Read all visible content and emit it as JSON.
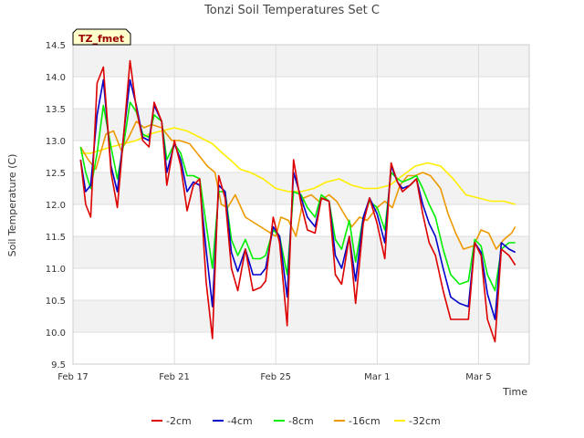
{
  "chart_data": {
    "type": "line",
    "title": "Tonzi Soil Temperatures Set C",
    "station_label": "TZ_fmet",
    "xlabel": "Time",
    "ylabel": "Soil Temperature (C)",
    "xlim": [
      0,
      18
    ],
    "ylim": [
      9.5,
      14.5
    ],
    "x_ticks": [
      {
        "x": 0,
        "label": "Feb 17"
      },
      {
        "x": 4,
        "label": "Feb 21"
      },
      {
        "x": 8,
        "label": "Feb 25"
      },
      {
        "x": 12,
        "label": "Mar 1"
      },
      {
        "x": 16,
        "label": "Mar 5"
      }
    ],
    "y_ticks": [
      "9.5",
      "10.0",
      "10.5",
      "11.0",
      "11.5",
      "12.0",
      "12.5",
      "13.0",
      "13.5",
      "14.0",
      "14.5"
    ],
    "grid": true,
    "band_fill": "#f2f2f2",
    "legend_position": "bottom-center",
    "series": [
      {
        "name": "-2cm",
        "color": "#dd0000",
        "x": [
          0.3,
          0.5,
          0.7,
          0.95,
          1.2,
          1.5,
          1.75,
          2.0,
          2.25,
          2.5,
          2.75,
          3.0,
          3.2,
          3.5,
          3.7,
          4.0,
          4.25,
          4.5,
          4.75,
          5.0,
          5.25,
          5.5,
          5.75,
          6.0,
          6.25,
          6.5,
          6.8,
          7.1,
          7.4,
          7.6,
          7.9,
          8.15,
          8.45,
          8.7,
          9.0,
          9.25,
          9.55,
          9.8,
          10.1,
          10.35,
          10.6,
          10.9,
          11.15,
          11.45,
          11.7,
          12.0,
          12.3,
          12.55,
          12.8,
          13.0,
          13.3,
          13.55,
          13.8,
          14.05,
          14.3,
          14.6,
          14.9,
          15.25,
          15.6,
          15.85,
          16.1,
          16.35,
          16.65,
          16.9,
          17.2,
          17.45
        ],
        "y": [
          12.7,
          12.0,
          11.8,
          13.9,
          14.15,
          12.5,
          11.95,
          13.1,
          14.25,
          13.5,
          13.0,
          12.9,
          13.6,
          13.3,
          12.3,
          13.0,
          12.6,
          11.9,
          12.3,
          12.4,
          10.8,
          9.9,
          12.45,
          12.1,
          11.0,
          10.65,
          11.3,
          10.65,
          10.7,
          10.8,
          11.8,
          11.4,
          10.1,
          12.7,
          12.0,
          11.6,
          11.55,
          12.1,
          12.05,
          10.9,
          10.75,
          11.5,
          10.45,
          11.7,
          12.1,
          11.7,
          11.15,
          12.65,
          12.35,
          12.2,
          12.3,
          12.4,
          11.85,
          11.4,
          11.2,
          10.65,
          10.2,
          10.2,
          10.2,
          11.4,
          11.2,
          10.2,
          9.85,
          11.3,
          11.2,
          11.05
        ]
      },
      {
        "name": "-4cm",
        "color": "#0000cc",
        "x": [
          0.3,
          0.5,
          0.7,
          0.95,
          1.2,
          1.5,
          1.75,
          2.0,
          2.25,
          2.5,
          2.75,
          3.0,
          3.2,
          3.5,
          3.7,
          4.0,
          4.25,
          4.5,
          4.75,
          5.0,
          5.25,
          5.5,
          5.75,
          6.0,
          6.25,
          6.5,
          6.8,
          7.1,
          7.4,
          7.6,
          7.9,
          8.15,
          8.45,
          8.7,
          9.0,
          9.25,
          9.55,
          9.8,
          10.1,
          10.35,
          10.6,
          10.9,
          11.15,
          11.45,
          11.7,
          12.0,
          12.3,
          12.55,
          12.8,
          13.0,
          13.3,
          13.55,
          13.8,
          14.05,
          14.3,
          14.6,
          14.9,
          15.25,
          15.6,
          15.85,
          16.1,
          16.35,
          16.65,
          16.9,
          17.2,
          17.45
        ],
        "y": [
          12.7,
          12.2,
          12.3,
          13.4,
          13.95,
          12.6,
          12.2,
          13.1,
          13.95,
          13.55,
          13.05,
          13.0,
          13.55,
          13.3,
          12.5,
          12.95,
          12.7,
          12.2,
          12.35,
          12.3,
          11.3,
          10.4,
          12.3,
          12.2,
          11.25,
          10.95,
          11.3,
          10.9,
          10.9,
          11.0,
          11.65,
          11.5,
          10.55,
          12.5,
          12.1,
          11.8,
          11.65,
          12.1,
          12.05,
          11.2,
          11.0,
          11.5,
          10.8,
          11.8,
          12.1,
          11.85,
          11.4,
          12.6,
          12.35,
          12.25,
          12.3,
          12.4,
          12.0,
          11.7,
          11.5,
          11.0,
          10.55,
          10.45,
          10.4,
          11.4,
          11.25,
          10.6,
          10.2,
          11.4,
          11.3,
          11.25
        ]
      },
      {
        "name": "-8cm",
        "color": "#00ee00",
        "x": [
          0.3,
          0.5,
          0.7,
          0.95,
          1.2,
          1.5,
          1.75,
          2.0,
          2.25,
          2.5,
          2.75,
          3.0,
          3.2,
          3.5,
          3.7,
          4.0,
          4.25,
          4.5,
          4.75,
          5.0,
          5.25,
          5.5,
          5.75,
          6.0,
          6.25,
          6.5,
          6.8,
          7.1,
          7.4,
          7.6,
          7.9,
          8.15,
          8.45,
          8.7,
          9.0,
          9.25,
          9.55,
          9.8,
          10.1,
          10.35,
          10.6,
          10.9,
          11.15,
          11.45,
          11.7,
          12.0,
          12.3,
          12.55,
          12.8,
          13.0,
          13.3,
          13.55,
          13.8,
          14.05,
          14.3,
          14.6,
          14.9,
          15.25,
          15.6,
          15.85,
          16.1,
          16.35,
          16.65,
          16.9,
          17.2,
          17.45
        ],
        "y": [
          12.9,
          12.5,
          12.25,
          12.8,
          13.55,
          12.9,
          12.4,
          12.95,
          13.6,
          13.45,
          13.1,
          13.05,
          13.4,
          13.3,
          12.7,
          12.95,
          12.8,
          12.45,
          12.45,
          12.4,
          11.7,
          11.0,
          12.2,
          12.2,
          11.45,
          11.2,
          11.45,
          11.15,
          11.15,
          11.2,
          11.6,
          11.5,
          10.9,
          12.2,
          12.15,
          11.95,
          11.8,
          12.15,
          12.05,
          11.45,
          11.3,
          11.75,
          11.1,
          11.8,
          12.05,
          11.95,
          11.6,
          12.5,
          12.4,
          12.35,
          12.4,
          12.45,
          12.25,
          12.0,
          11.8,
          11.3,
          10.9,
          10.75,
          10.8,
          11.45,
          11.35,
          10.9,
          10.65,
          11.3,
          11.4,
          11.4
        ]
      },
      {
        "name": "-16cm",
        "color": "#ee9900",
        "x": [
          0.3,
          0.6,
          0.9,
          1.3,
          1.6,
          1.9,
          2.2,
          2.5,
          2.8,
          3.1,
          3.5,
          3.9,
          4.2,
          4.6,
          5.0,
          5.3,
          5.6,
          5.85,
          6.1,
          6.4,
          6.8,
          7.2,
          7.6,
          8.0,
          8.2,
          8.5,
          8.8,
          9.1,
          9.4,
          9.7,
          10.1,
          10.4,
          10.7,
          11.0,
          11.3,
          11.6,
          12.0,
          12.3,
          12.6,
          12.9,
          13.2,
          13.5,
          13.8,
          14.1,
          14.5,
          14.8,
          15.1,
          15.4,
          15.8,
          16.1,
          16.4,
          16.7,
          17.0,
          17.3,
          17.45
        ],
        "y": [
          12.9,
          12.7,
          12.55,
          13.1,
          13.15,
          12.85,
          13.05,
          13.3,
          13.2,
          13.25,
          13.2,
          13.0,
          13.0,
          12.95,
          12.75,
          12.6,
          12.5,
          12.0,
          11.95,
          12.15,
          11.8,
          11.7,
          11.6,
          11.5,
          11.8,
          11.75,
          11.5,
          12.1,
          12.15,
          12.05,
          12.15,
          12.05,
          11.85,
          11.65,
          11.8,
          11.75,
          11.95,
          12.05,
          11.95,
          12.3,
          12.45,
          12.45,
          12.5,
          12.45,
          12.25,
          11.85,
          11.55,
          11.3,
          11.35,
          11.6,
          11.55,
          11.3,
          11.45,
          11.55,
          11.65
        ]
      },
      {
        "name": "-32cm",
        "color": "#ffee00",
        "x": [
          0.3,
          0.7,
          1.1,
          1.5,
          2.0,
          2.5,
          3.0,
          3.5,
          4.0,
          4.5,
          5.0,
          5.5,
          5.9,
          6.2,
          6.6,
          7.0,
          7.5,
          8.0,
          8.5,
          9.0,
          9.5,
          10.0,
          10.5,
          11.0,
          11.5,
          12.0,
          12.5,
          13.0,
          13.5,
          14.0,
          14.5,
          15.0,
          15.5,
          16.0,
          16.5,
          17.0,
          17.45
        ],
        "y": [
          12.8,
          12.8,
          12.85,
          12.9,
          12.95,
          13.0,
          13.1,
          13.15,
          13.2,
          13.15,
          13.05,
          12.95,
          12.8,
          12.7,
          12.55,
          12.5,
          12.4,
          12.25,
          12.2,
          12.2,
          12.25,
          12.35,
          12.4,
          12.3,
          12.25,
          12.25,
          12.3,
          12.45,
          12.6,
          12.65,
          12.6,
          12.4,
          12.15,
          12.1,
          12.05,
          12.05,
          12.0
        ]
      }
    ]
  }
}
